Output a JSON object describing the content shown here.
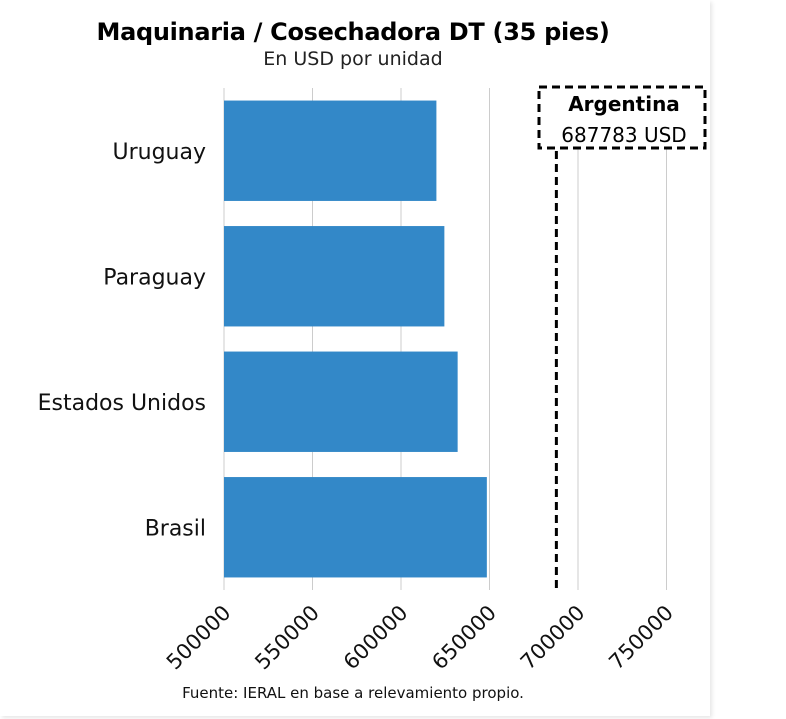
{
  "chart_data": {
    "type": "bar",
    "orientation": "horizontal",
    "title": "Maquinaria / Cosechadora DT (35 pies)",
    "subtitle": "En USD por unidad",
    "categories": [
      "Uruguay",
      "Paraguay",
      "Estados Unidos",
      "Brasil"
    ],
    "values": [
      620000,
      624500,
      632000,
      648500
    ],
    "xlim": [
      500000,
      775000
    ],
    "xticks": [
      500000,
      550000,
      600000,
      650000,
      700000,
      750000
    ],
    "xtick_labels": [
      "500000",
      "550000",
      "600000",
      "650000",
      "700000",
      "750000"
    ],
    "grid": "vertical",
    "bar_color": "#3388c8",
    "reference_line": {
      "value": 687783,
      "style": "dashed",
      "color": "#000000",
      "label": "Argentina",
      "value_label": "687783 USD"
    }
  },
  "source": "Fuente: IERAL en base a relevamiento propio."
}
